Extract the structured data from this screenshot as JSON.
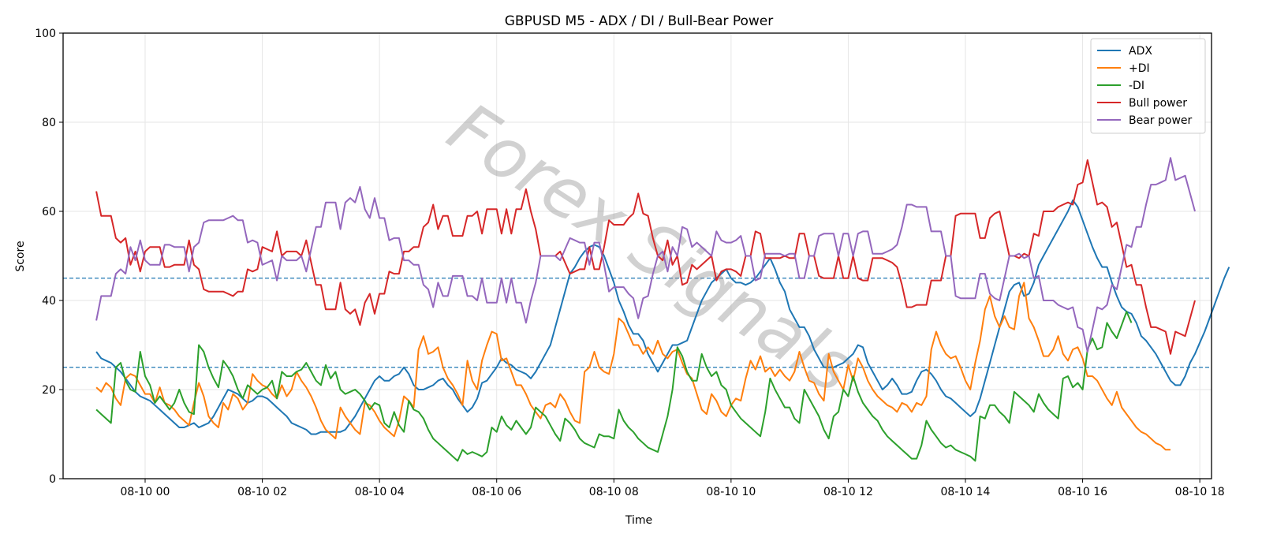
{
  "chart_data": {
    "type": "line",
    "title": "GBPUSD M5 - ADX / DI / Bull-Bear Power",
    "xlabel": "Time",
    "ylabel": "Score",
    "ylim": [
      0,
      100
    ],
    "xlim_hours": [
      -1.4,
      18.2
    ],
    "yticks": [
      0,
      20,
      40,
      60,
      80,
      100
    ],
    "xticks": [
      {
        "h": 0,
        "label": "08-10 00"
      },
      {
        "h": 2,
        "label": "08-10 02"
      },
      {
        "h": 4,
        "label": "08-10 04"
      },
      {
        "h": 6,
        "label": "08-10 06"
      },
      {
        "h": 8,
        "label": "08-10 08"
      },
      {
        "h": 10,
        "label": "08-10 10"
      },
      {
        "h": 12,
        "label": "08-10 12"
      },
      {
        "h": 14,
        "label": "08-10 14"
      },
      {
        "h": 16,
        "label": "08-10 16"
      },
      {
        "h": 18,
        "label": "08-10 18"
      }
    ],
    "grid": true,
    "legend_position": "top-right",
    "reference_lines": [
      {
        "y": 45,
        "style": "dashed",
        "color": "#1f77b4"
      },
      {
        "y": 25,
        "style": "dashed",
        "color": "#1f77b4"
      }
    ],
    "watermark": "Forex Signals",
    "x_start": "08-09 23:10",
    "x_step_minutes": 5,
    "series": [
      {
        "name": "ADX",
        "color": "#1f77b4",
        "values": [
          28.5,
          27,
          26.5,
          26,
          25,
          24,
          22.5,
          21,
          19.5,
          18.5,
          18,
          17.5,
          16.5,
          15.5,
          14.5,
          13.5,
          12.5,
          11.5,
          11.5,
          12,
          12.5,
          11.5,
          12,
          12.5,
          14,
          16,
          18,
          20,
          19.5,
          19,
          18,
          17,
          17.5,
          18.5,
          18.5,
          18,
          17,
          16,
          15,
          14,
          12.5,
          12,
          11.5,
          11,
          10,
          10,
          10.5,
          10.5,
          10.5,
          10.5,
          10.5,
          11,
          12.5,
          14,
          16,
          18,
          20,
          22,
          23,
          22,
          22,
          23,
          23.5,
          25,
          23.5,
          21,
          20,
          20,
          20.5,
          21,
          22,
          22.5,
          21,
          20,
          18,
          16.5,
          15,
          16,
          18,
          21.5,
          22,
          23.5,
          25,
          27,
          26,
          25.5,
          24.5,
          24,
          23.5,
          22.5,
          24,
          26,
          28,
          30,
          34,
          38,
          42,
          46,
          47.5,
          49.5,
          51,
          52,
          52.5,
          52,
          50,
          47,
          44,
          40,
          37.5,
          34.5,
          32.5,
          32.5,
          31,
          28,
          26,
          24,
          26,
          28,
          30,
          30,
          30.5,
          31,
          34,
          37,
          40,
          42,
          44,
          45,
          46,
          47,
          45,
          44,
          44,
          43.5,
          44,
          45,
          46.5,
          48,
          49.5,
          47,
          44,
          42,
          38,
          36,
          34,
          34,
          32,
          29,
          27,
          25,
          25,
          25,
          25.5,
          26,
          27,
          28,
          30,
          29.5,
          26,
          24,
          22,
          20,
          21,
          22.5,
          21,
          19,
          19,
          19.5,
          22,
          24,
          24.5,
          23.5,
          22,
          20,
          18.5,
          18,
          17,
          16,
          15,
          14,
          15,
          18,
          22,
          26,
          30,
          34,
          38,
          42,
          43.5,
          44,
          41,
          41.5,
          44,
          48,
          50,
          52,
          54,
          56,
          58,
          60,
          62.5,
          61,
          58,
          55,
          52,
          49.5,
          47.5,
          47.5,
          44,
          41,
          38.5,
          37.5,
          37,
          35,
          32,
          31,
          29.5,
          28,
          26,
          24,
          22,
          21,
          21,
          23,
          26,
          28,
          30.5,
          33,
          36,
          39,
          42,
          45,
          47.5
        ]
      },
      {
        "name": "+DI",
        "color": "#ff7f0e",
        "values": [
          20.5,
          19.5,
          21.5,
          20.5,
          18,
          16.5,
          22.5,
          23.5,
          23,
          21,
          19,
          19,
          17,
          20.5,
          17,
          16.5,
          15.5,
          14,
          13,
          12,
          17,
          21.5,
          18.5,
          14,
          12.5,
          11.5,
          17,
          15.5,
          19,
          18,
          15.5,
          17,
          23.5,
          22,
          21,
          20.5,
          19,
          18,
          21,
          18.5,
          20,
          24,
          22,
          20.5,
          18.5,
          16,
          13,
          11,
          10,
          9,
          16,
          14,
          12.5,
          11,
          10,
          17,
          16.5,
          15,
          13,
          11.5,
          10.5,
          9.5,
          13,
          18.5,
          17.5,
          16,
          29,
          32,
          28,
          28.5,
          29.5,
          25,
          22.5,
          21,
          19,
          16.5,
          26.5,
          22,
          20,
          26.5,
          30,
          33,
          32.5,
          26.5,
          27,
          24,
          21,
          21,
          19,
          16.5,
          15,
          13.5,
          16.5,
          17,
          16,
          19,
          17.5,
          15,
          13,
          12.5,
          24,
          25,
          28.5,
          25,
          24,
          23.5,
          28,
          36,
          35,
          32.5,
          30,
          30,
          28,
          29.5,
          28,
          31,
          28,
          27,
          28.5,
          29,
          26,
          23.5,
          22.5,
          19,
          15.5,
          14.5,
          19,
          17.5,
          15,
          14,
          16.5,
          18,
          17.5,
          22.5,
          26.5,
          24.5,
          27.5,
          24,
          25,
          23,
          24.5,
          23,
          22,
          24,
          28.5,
          25,
          22,
          21.5,
          19,
          17.5,
          28,
          24,
          22,
          20,
          25.5,
          22,
          27,
          25,
          22,
          20,
          18.5,
          17.5,
          16.5,
          16,
          15,
          17,
          16.5,
          15,
          17,
          16.5,
          18.5,
          29,
          33,
          30,
          28,
          27,
          27.5,
          25,
          22,
          20,
          26,
          31,
          38,
          41,
          36.5,
          34,
          36.5,
          34,
          33.5,
          41,
          44,
          36,
          34,
          31,
          27.5,
          27.5,
          29,
          32,
          28,
          26.5,
          29,
          29.5,
          27,
          23,
          23,
          22,
          20,
          18,
          16.5,
          19.5,
          16,
          14.5,
          13,
          11.5,
          10.5,
          10,
          9,
          8,
          7.5,
          6.5,
          6.5
        ]
      },
      {
        "name": "-DI",
        "color": "#2ca02c",
        "values": [
          15.5,
          14.5,
          13.5,
          12.5,
          25,
          26,
          22,
          20,
          19.5,
          28.5,
          23,
          21,
          17,
          18.5,
          17,
          15.5,
          17,
          20,
          17,
          15,
          14.5,
          30,
          28.5,
          25,
          22.5,
          20.5,
          26.5,
          25,
          23,
          20,
          18,
          21,
          20,
          19,
          20,
          20.5,
          22,
          18,
          24,
          23,
          23,
          24,
          24.5,
          26,
          24,
          22,
          21,
          25.5,
          22.5,
          24,
          20,
          19,
          19.5,
          20,
          19,
          17.5,
          15.5,
          17,
          16.5,
          12.5,
          11.5,
          15,
          12,
          10.5,
          17.5,
          15.5,
          15,
          13.5,
          11,
          9,
          8,
          7,
          6,
          5,
          4,
          6.5,
          5.5,
          6,
          5.5,
          5,
          6,
          11.5,
          10.5,
          14,
          12,
          11,
          13,
          11.5,
          10,
          11.5,
          16,
          15,
          14,
          12,
          10,
          8.5,
          13.5,
          12.5,
          11,
          9,
          8,
          7.5,
          7,
          10,
          9.5,
          9.5,
          9,
          15.5,
          13,
          11.5,
          10.5,
          9,
          8,
          7,
          6.5,
          6,
          10,
          14,
          20,
          29.5,
          27.5,
          24,
          22,
          22,
          28,
          25,
          23,
          24,
          21,
          20,
          16.5,
          15,
          13.5,
          12.5,
          11.5,
          10.5,
          9.5,
          15,
          22.5,
          20,
          18,
          16,
          16,
          13.5,
          12.5,
          20,
          18,
          16,
          14,
          11,
          9,
          14,
          15,
          20,
          18.5,
          23,
          19.5,
          17,
          15.5,
          14,
          13,
          11,
          9.5,
          8.5,
          7.5,
          6.5,
          5.5,
          4.5,
          4.5,
          7.5,
          13,
          11,
          9.5,
          8,
          7,
          7.5,
          6.5,
          6,
          5.5,
          5,
          4,
          14,
          13.5,
          16.5,
          16.5,
          15,
          14,
          12.5,
          19.5,
          18.5,
          17.5,
          16.5,
          15,
          19,
          17,
          15.5,
          14.5,
          13.5,
          22.5,
          23,
          20.5,
          21.5,
          20,
          29,
          31.5,
          29,
          29.5,
          35,
          33,
          31.5,
          34.5,
          37.5,
          35
        ]
      },
      {
        "name": "Bull power",
        "color": "#d62728",
        "values": [
          64.5,
          59,
          59,
          59,
          54,
          53,
          54,
          48,
          51,
          46.5,
          51,
          52,
          52,
          52,
          47.5,
          47.5,
          48,
          48,
          48,
          53.5,
          48,
          47,
          42.5,
          42,
          42,
          42,
          42,
          41.5,
          41,
          42,
          42,
          47,
          46.5,
          47,
          52,
          51.5,
          51,
          55.5,
          50,
          51,
          51,
          51,
          50,
          53.5,
          48.5,
          43.5,
          43.5,
          38,
          38,
          38,
          44,
          38,
          37,
          38,
          34.5,
          39.5,
          41.5,
          37,
          41.5,
          41.5,
          46.5,
          46,
          46,
          51,
          51,
          52,
          52,
          56.5,
          57.5,
          61.5,
          56,
          59,
          59,
          54.5,
          54.5,
          54.5,
          59,
          59,
          60,
          55,
          60.5,
          60.5,
          60.5,
          55,
          60.5,
          55,
          60.5,
          60.5,
          65,
          60,
          56,
          50,
          50,
          50,
          50,
          51,
          48.5,
          46,
          46.5,
          47,
          47,
          52,
          47,
          47,
          52,
          58,
          57,
          57,
          57,
          58.5,
          59.5,
          64,
          59.5,
          59,
          54,
          50,
          49,
          53.5,
          48,
          50,
          43.5,
          44,
          48,
          47,
          48,
          49,
          50,
          44.5,
          46.5,
          47,
          47,
          46.5,
          45.5,
          50,
          50,
          55.5,
          55,
          49.5,
          49.5,
          49.5,
          49.5,
          50,
          49.5,
          49.5,
          55,
          55,
          50,
          50,
          45.5,
          45,
          45,
          45,
          50,
          45,
          45,
          50,
          45,
          44.5,
          44.5,
          49.5,
          49.5,
          49.5,
          49,
          48.5,
          47.5,
          43.5,
          38.5,
          38.5,
          39,
          39,
          39,
          44.5,
          44.5,
          44.5,
          50,
          50,
          59,
          59.5,
          59.5,
          59.5,
          59.5,
          54,
          54,
          58.5,
          59.5,
          60,
          55,
          50,
          50,
          49.5,
          50.5,
          50,
          55,
          54.5,
          60,
          60,
          60,
          61,
          61.5,
          62,
          61.5,
          66,
          66.5,
          71.5,
          66.5,
          61.5,
          62,
          61,
          56.5,
          57.5,
          52.5,
          47.5,
          48,
          43.5,
          43.5,
          38.5,
          34,
          34,
          33.5,
          33,
          28,
          33,
          32.5,
          32,
          36,
          40
        ]
      },
      {
        "name": "Bear power",
        "color": "#9467bd",
        "values": [
          35.5,
          41,
          41,
          41,
          46,
          47,
          46,
          52,
          49,
          53.5,
          49,
          48,
          48,
          48,
          52.5,
          52.5,
          52,
          52,
          52,
          46.5,
          52,
          53,
          57.5,
          58,
          58,
          58,
          58,
          58.5,
          59,
          58,
          58,
          53,
          53.5,
          53,
          48,
          48.5,
          49,
          44.5,
          50,
          49,
          49,
          49,
          50,
          46.5,
          51.5,
          56.5,
          56.5,
          62,
          62,
          62,
          56,
          62,
          63,
          62,
          65.5,
          60.5,
          58.5,
          63,
          58.5,
          58.5,
          53.5,
          54,
          54,
          49,
          49,
          48,
          48,
          43.5,
          42.5,
          38.5,
          44,
          41,
          41,
          45.5,
          45.5,
          45.5,
          41,
          41,
          40,
          45,
          39.5,
          39.5,
          39.5,
          45,
          39.5,
          45,
          39.5,
          39.5,
          35,
          40,
          44,
          50,
          50,
          50,
          50,
          49,
          51.5,
          54,
          53.5,
          53,
          53,
          48,
          53,
          53,
          48,
          42,
          43,
          43,
          43,
          41.5,
          40.5,
          36,
          40.5,
          41,
          46,
          50,
          51,
          46.5,
          52,
          50,
          56.5,
          56,
          52,
          53,
          52,
          51,
          50,
          55.5,
          53.5,
          53,
          53,
          53.5,
          54.5,
          50,
          50,
          44.5,
          45,
          50.5,
          50.5,
          50.5,
          50.5,
          50,
          50.5,
          50.5,
          45,
          45,
          50,
          50,
          54.5,
          55,
          55,
          55,
          50,
          55,
          55,
          50,
          55,
          55.5,
          55.5,
          50.5,
          50.5,
          50.5,
          51,
          51.5,
          52.5,
          56.5,
          61.5,
          61.5,
          61,
          61,
          61,
          55.5,
          55.5,
          55.5,
          50,
          50,
          41,
          40.5,
          40.5,
          40.5,
          40.5,
          46,
          46,
          41.5,
          40.5,
          40,
          45,
          50,
          50,
          50.5,
          49.5,
          50,
          45,
          45.5,
          40,
          40,
          40,
          39,
          38.5,
          38,
          38.5,
          34,
          33.5,
          28.5,
          33.5,
          38.5,
          38,
          39,
          43.5,
          42.5,
          47.5,
          52.5,
          52,
          56.5,
          56.5,
          61.5,
          66,
          66,
          66.5,
          67,
          72,
          67,
          67.5,
          68,
          64,
          60
        ]
      }
    ]
  }
}
